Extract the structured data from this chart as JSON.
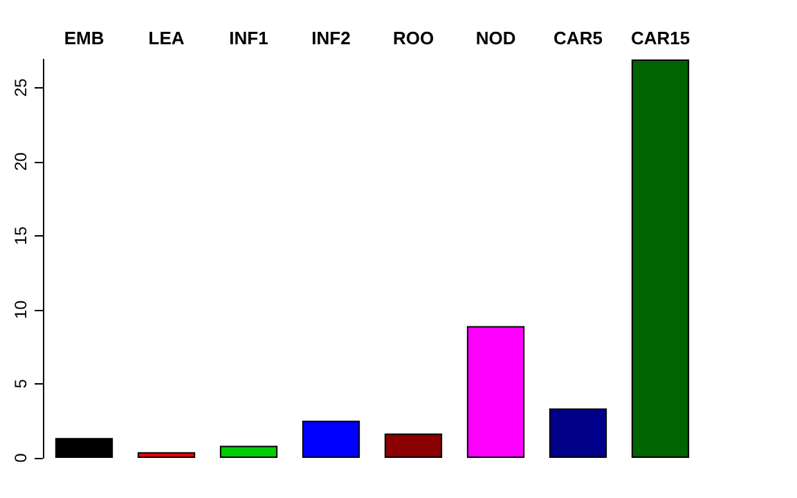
{
  "chart_data": {
    "type": "bar",
    "categories": [
      "EMB",
      "LEA",
      "INF1",
      "INF2",
      "ROO",
      "NOD",
      "CAR5",
      "CAR15"
    ],
    "values": [
      1.34,
      0.38,
      0.82,
      2.51,
      1.65,
      8.9,
      3.34,
      26.9
    ],
    "colors": [
      "#000000",
      "#ff0000",
      "#00cd00",
      "#0000ff",
      "#8b0000",
      "#ff00ff",
      "#00008b",
      "#006400"
    ],
    "ylim": [
      0,
      26.9
    ],
    "yticks": [
      0,
      5,
      10,
      15,
      20,
      25
    ],
    "grid": false
  }
}
